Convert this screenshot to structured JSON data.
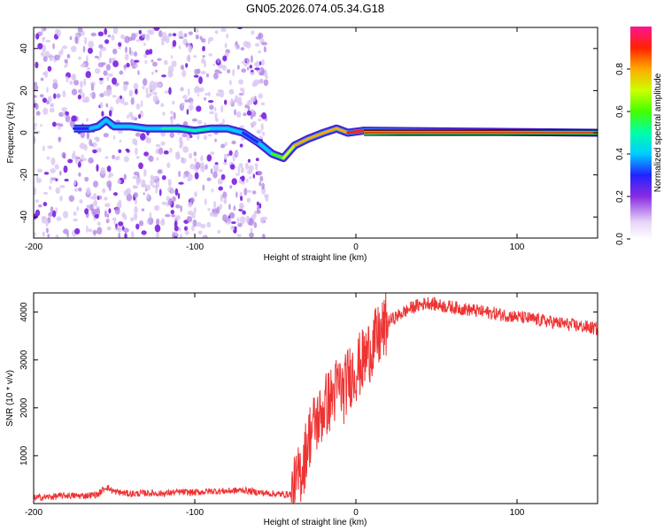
{
  "title": "GN05.2026.074.05.34.G18",
  "chart_data": [
    {
      "type": "heatmap",
      "xlabel": "Height of straight line (km)",
      "ylabel": "Frequency (Hz)",
      "xlim": [
        -200,
        150
      ],
      "ylim": [
        -50,
        50
      ],
      "xticks": [
        -200,
        -100,
        0,
        100
      ],
      "yticks": [
        -40,
        -20,
        0,
        20,
        40
      ],
      "colorbar": {
        "label": "Normalized spectral amplitude",
        "range": [
          0,
          1
        ],
        "ticks": [
          "0.0",
          "0.2",
          "0.4",
          "0.6",
          "0.8"
        ],
        "tick_values": [
          0,
          0.2,
          0.4,
          0.6,
          0.8
        ]
      },
      "noise_region_x": [
        -200,
        -55
      ],
      "signal_trace": [
        {
          "x": -175,
          "f": 2,
          "amp": 0.3
        },
        {
          "x": -165,
          "f": 2,
          "amp": 0.35
        },
        {
          "x": -160,
          "f": 3,
          "amp": 0.45
        },
        {
          "x": -155,
          "f": 6,
          "amp": 0.45
        },
        {
          "x": -150,
          "f": 3,
          "amp": 0.4
        },
        {
          "x": -140,
          "f": 3,
          "amp": 0.45
        },
        {
          "x": -130,
          "f": 2,
          "amp": 0.45
        },
        {
          "x": -120,
          "f": 2,
          "amp": 0.5
        },
        {
          "x": -110,
          "f": 2,
          "amp": 0.5
        },
        {
          "x": -100,
          "f": 1,
          "amp": 0.5
        },
        {
          "x": -90,
          "f": 2,
          "amp": 0.5
        },
        {
          "x": -80,
          "f": 2,
          "amp": 0.45
        },
        {
          "x": -70,
          "f": 0,
          "amp": 0.4
        },
        {
          "x": -60,
          "f": -5,
          "amp": 0.35
        },
        {
          "x": -52,
          "f": -10,
          "amp": 0.55
        },
        {
          "x": -45,
          "f": -12,
          "amp": 0.7
        },
        {
          "x": -38,
          "f": -6,
          "amp": 0.8
        },
        {
          "x": -30,
          "f": -3,
          "amp": 0.85
        },
        {
          "x": -20,
          "f": 0,
          "amp": 0.85
        },
        {
          "x": -12,
          "f": 2,
          "amp": 0.88
        },
        {
          "x": -5,
          "f": 0,
          "amp": 0.9
        },
        {
          "x": 5,
          "f": 1,
          "amp": 0.9
        },
        {
          "x": 150,
          "f": 0,
          "amp": 0.95
        }
      ]
    },
    {
      "type": "line",
      "xlabel": "Height of straight line (km)",
      "ylabel": "SNR (10 * v/v)",
      "xlim": [
        -200,
        150
      ],
      "ylim": [
        0,
        4400
      ],
      "xticks": [
        -200,
        -100,
        0,
        100
      ],
      "yticks": [
        1000,
        2000,
        3000,
        4000
      ],
      "series": [
        {
          "name": "SNR",
          "color": "#ee3333",
          "x": [
            -200,
            -190,
            -180,
            -170,
            -160,
            -155,
            -150,
            -140,
            -130,
            -120,
            -110,
            -100,
            -90,
            -80,
            -70,
            -60,
            -50,
            -45,
            -40,
            -38,
            -35,
            -32,
            -30,
            -28,
            -25,
            -22,
            -20,
            -18,
            -15,
            -12,
            -10,
            -8,
            -5,
            -3,
            0,
            5,
            10,
            15,
            20,
            25,
            30,
            35,
            40,
            45,
            50,
            60,
            70,
            80,
            90,
            100,
            110,
            120,
            130,
            140,
            150
          ],
          "y": [
            120,
            140,
            170,
            160,
            190,
            350,
            250,
            200,
            220,
            210,
            240,
            230,
            260,
            260,
            280,
            230,
            200,
            190,
            200,
            300,
            600,
            900,
            1300,
            1500,
            1700,
            1800,
            2000,
            2100,
            2200,
            2400,
            2500,
            2300,
            2600,
            2700,
            2800,
            3000,
            3300,
            3500,
            3800,
            3900,
            4000,
            4100,
            4150,
            4200,
            4150,
            4100,
            4050,
            4000,
            3950,
            3900,
            3850,
            3800,
            3750,
            3700,
            3650
          ]
        }
      ]
    }
  ]
}
